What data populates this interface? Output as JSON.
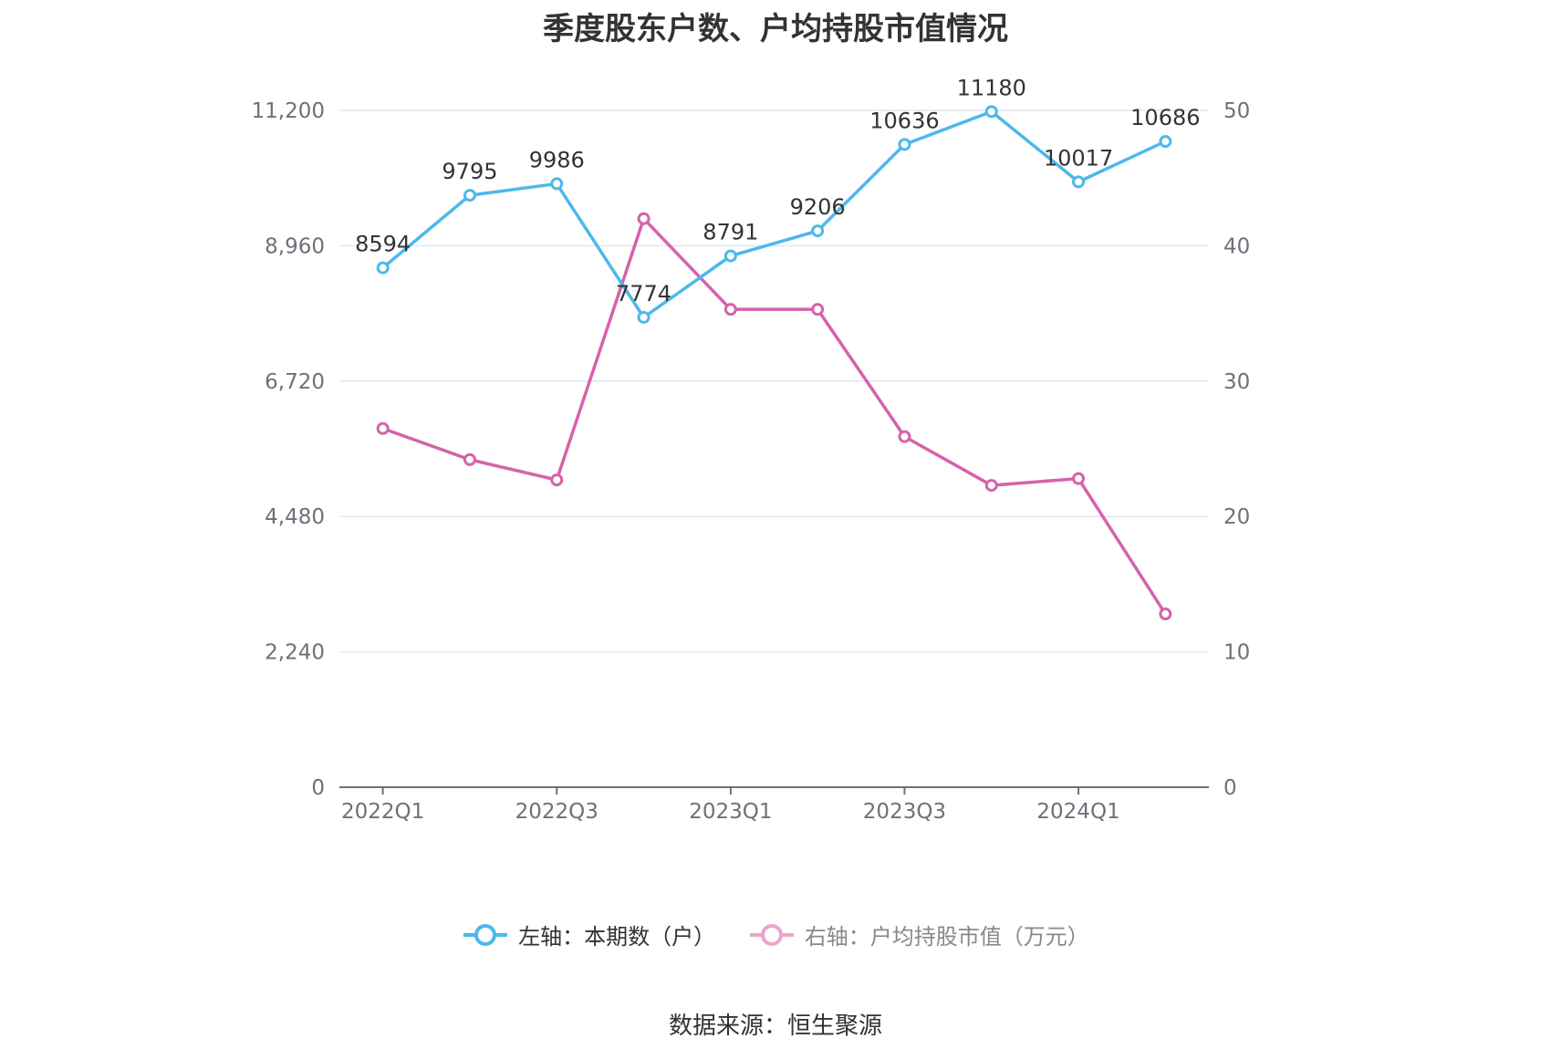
{
  "chart_data": {
    "type": "line",
    "title": "季度股东户数、户均持股市值情况",
    "categories": [
      "2022Q1",
      "2022Q2",
      "2022Q3",
      "2022Q4",
      "2023Q1",
      "2023Q2",
      "2023Q3",
      "2023Q4",
      "2024Q1",
      "2024Q2"
    ],
    "x_tick_labels": [
      "2022Q1",
      "2022Q3",
      "2023Q1",
      "2023Q3",
      "2024Q1"
    ],
    "left_axis": {
      "ylim": [
        0,
        11200
      ],
      "ticks": [
        "0",
        "2,240",
        "4,480",
        "6,720",
        "8,960",
        "11,200"
      ]
    },
    "right_axis": {
      "ylim": [
        0,
        50
      ],
      "ticks": [
        "0",
        "10",
        "20",
        "30",
        "40",
        "50"
      ]
    },
    "grid": true,
    "legend_position": "bottom-center",
    "series": [
      {
        "name": "左轴：本期数（户）",
        "axis": "left",
        "color": "#4DB8EC",
        "values": [
          8594,
          9795,
          9986,
          7774,
          8791,
          9206,
          10636,
          11180,
          10017,
          10686
        ],
        "labels": [
          "8594",
          "9795",
          "9986",
          "7774",
          "8791",
          "9206",
          "10636",
          "11180",
          "10017",
          "10686"
        ]
      },
      {
        "name": "右轴：户均持股市值（万元）",
        "axis": "right",
        "color": "#D563AA",
        "values": [
          26.5,
          24.2,
          22.7,
          42.0,
          35.3,
          35.3,
          25.9,
          22.3,
          22.8,
          12.8
        ]
      }
    ]
  },
  "source": "数据来源：恒生聚源"
}
